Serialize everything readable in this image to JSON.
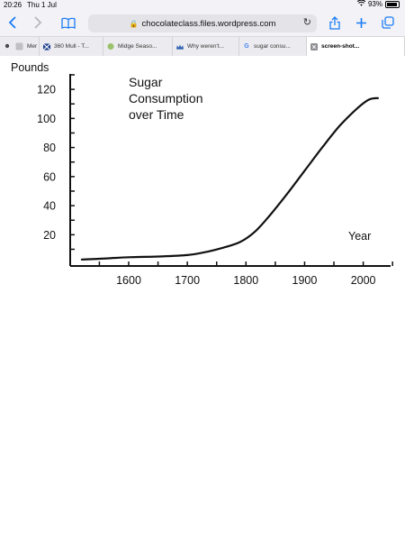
{
  "status_bar": {
    "time": "20:26",
    "date": "Thu 1 Jul",
    "battery": "93%"
  },
  "toolbar": {
    "url": "chocolateclass.files.wordpress.com"
  },
  "tabs": [
    {
      "label": "Mer",
      "icon": "face-icon"
    },
    {
      "label": "360 Mull - T...",
      "icon": "flag-icon"
    },
    {
      "label": "Midge Seaso...",
      "icon": "leaf-icon"
    },
    {
      "label": "Why weren't...",
      "icon": "crown-icon"
    },
    {
      "label": "sugar consu...",
      "icon": "google-icon"
    },
    {
      "label": "screen-shot...",
      "icon": "close-icon",
      "active": true
    }
  ],
  "chart_data": {
    "type": "line",
    "title": "Sugar Consumption over Time",
    "title_lines": [
      "Sugar",
      "Consumption",
      "over Time"
    ],
    "xlabel": "Year",
    "ylabel": "Pounds",
    "xlim": [
      1500,
      2050
    ],
    "ylim": [
      0,
      130
    ],
    "x_ticks": [
      1600,
      1700,
      1800,
      1900,
      2000
    ],
    "y_ticks": [
      20,
      40,
      60,
      80,
      100,
      120
    ],
    "series": [
      {
        "x": [
          1520,
          1550,
          1600,
          1650,
          1700,
          1730,
          1760,
          1790,
          1815,
          1840,
          1870,
          1900,
          1930,
          1960,
          1990,
          2010,
          2025
        ],
        "y": [
          3,
          3.5,
          4.5,
          5,
          6,
          8,
          11,
          15,
          22,
          33,
          48,
          64,
          80,
          95,
          107,
          113,
          114
        ]
      }
    ]
  }
}
